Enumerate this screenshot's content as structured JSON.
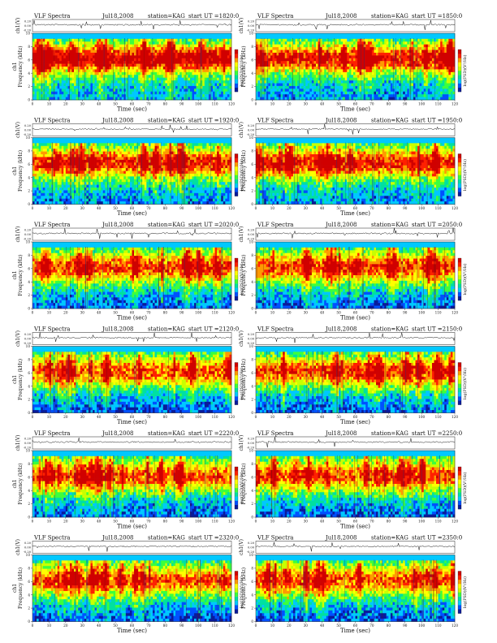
{
  "chart_data": [
    {
      "type": "heatmap",
      "header": {
        "product": "VLF Spectra",
        "date": "Jul18,2008",
        "station": "station=KAG",
        "start": "start  UT =1820:0"
      },
      "waveform_ylabel": "ch1(V)",
      "waveform_ticks": [
        "0.20",
        "0.00",
        "-0.20"
      ],
      "ylabel": "Frequency  (kHz)",
      "ylabel_prefix": "ch1",
      "y_ticks": [
        0,
        2,
        4,
        6,
        8,
        10
      ],
      "ylim": [
        0,
        10
      ],
      "xlabel": "Time  (sec)",
      "x_ticks": [
        0,
        10,
        20,
        30,
        40,
        50,
        60,
        70,
        80,
        90,
        100,
        110,
        120
      ],
      "xlim": [
        0,
        120
      ],
      "colorbar_label": "log(PSD)(V²/Hz)",
      "intensity": 0.92
    },
    {
      "type": "heatmap",
      "header": {
        "product": "VLF Spectra",
        "date": "Jul18,2008",
        "station": "station=KAG",
        "start": "start  UT =1850:0"
      },
      "waveform_ylabel": "ch1(V)",
      "waveform_ticks": [
        "0.20",
        "0.00",
        "-0.20"
      ],
      "ylabel": "Frequency  (kHz)",
      "ylabel_prefix": "",
      "y_ticks": [
        0,
        2,
        4,
        6,
        8,
        10
      ],
      "ylim": [
        0,
        10
      ],
      "xlabel": "Time  (sec)",
      "x_ticks": [
        0,
        10,
        20,
        30,
        40,
        50,
        60,
        70,
        80,
        90,
        100,
        110,
        120
      ],
      "xlim": [
        0,
        120
      ],
      "colorbar_label": "log(PSD)(V²/Hz)",
      "intensity": 0.75
    },
    {
      "type": "heatmap",
      "header": {
        "product": "VLF Spectra",
        "date": "Jul18,2008",
        "station": "station=KAG",
        "start": "start  UT =1920:0"
      },
      "waveform_ylabel": "ch1(V)",
      "waveform_ticks": [
        "0.20",
        "0.00",
        "-0.20"
      ],
      "ylabel": "Frequency  (kHz)",
      "ylabel_prefix": "ch1",
      "y_ticks": [
        0,
        2,
        4,
        6,
        8,
        10
      ],
      "ylim": [
        0,
        10
      ],
      "xlabel": "Time  (sec)",
      "x_ticks": [
        0,
        10,
        20,
        30,
        40,
        50,
        60,
        70,
        80,
        90,
        100,
        110,
        120
      ],
      "xlim": [
        0,
        120
      ],
      "colorbar_label": "log(PSD)(V²/Hz)",
      "intensity": 0.7
    },
    {
      "type": "heatmap",
      "header": {
        "product": "VLF Spectra",
        "date": "Jul18,2008",
        "station": "station=KAG",
        "start": "start  UT =1950:0"
      },
      "waveform_ylabel": "ch1(V)",
      "waveform_ticks": [
        "0.20",
        "0.00",
        "-0.20"
      ],
      "ylabel": "Frequency  (kHz)",
      "ylabel_prefix": "",
      "y_ticks": [
        0,
        2,
        4,
        6,
        8,
        10
      ],
      "ylim": [
        0,
        10
      ],
      "xlabel": "Time  (sec)",
      "x_ticks": [
        0,
        10,
        20,
        30,
        40,
        50,
        60,
        70,
        80,
        90,
        100,
        110,
        120
      ],
      "xlim": [
        0,
        120
      ],
      "colorbar_label": "log(PSD)(V²/Hz)",
      "intensity": 0.72
    },
    {
      "type": "heatmap",
      "header": {
        "product": "VLF Spectra",
        "date": "Jul18,2008",
        "station": "station=KAG",
        "start": "start  UT =2020:0"
      },
      "waveform_ylabel": "ch1(V)",
      "waveform_ticks": [
        "0.20",
        "0.00",
        "-0.20"
      ],
      "ylabel": "Frequency  (kHz)",
      "ylabel_prefix": "ch1",
      "y_ticks": [
        0,
        2,
        4,
        6,
        8,
        10
      ],
      "ylim": [
        0,
        10
      ],
      "xlabel": "Time  (sec)",
      "x_ticks": [
        0,
        10,
        20,
        30,
        40,
        50,
        60,
        70,
        80,
        90,
        100,
        110,
        120
      ],
      "xlim": [
        0,
        120
      ],
      "colorbar_label": "log(PSD)(V²/Hz)",
      "intensity": 0.55
    },
    {
      "type": "heatmap",
      "header": {
        "product": "VLF Spectra",
        "date": "Jul18,2008",
        "station": "station=KAG",
        "start": "start  UT =2050:0"
      },
      "waveform_ylabel": "ch1(V)",
      "waveform_ticks": [
        "0.20",
        "0.00",
        "-0.20"
      ],
      "ylabel": "Frequency  (kHz)",
      "ylabel_prefix": "",
      "y_ticks": [
        0,
        2,
        4,
        6,
        8,
        10
      ],
      "ylim": [
        0,
        10
      ],
      "xlabel": "Time  (sec)",
      "x_ticks": [
        0,
        10,
        20,
        30,
        40,
        50,
        60,
        70,
        80,
        90,
        100,
        110,
        120
      ],
      "xlim": [
        0,
        120
      ],
      "colorbar_label": "log(PSD)(V²/Hz)",
      "intensity": 0.55
    },
    {
      "type": "heatmap",
      "header": {
        "product": "VLF Spectra",
        "date": "Jul18,2008",
        "station": "station=KAG",
        "start": "start  UT =2120:0"
      },
      "waveform_ylabel": "ch1(V)",
      "waveform_ticks": [
        "0.20",
        "0.00",
        "-0.20"
      ],
      "ylabel": "Frequency  (kHz)",
      "ylabel_prefix": "ch1",
      "y_ticks": [
        0,
        2,
        4,
        6,
        8,
        10
      ],
      "ylim": [
        0,
        10
      ],
      "xlabel": "Time  (sec)",
      "x_ticks": [
        0,
        10,
        20,
        30,
        40,
        50,
        60,
        70,
        80,
        90,
        100,
        110,
        120
      ],
      "xlim": [
        0,
        120
      ],
      "colorbar_label": "log(PSD)(V²/Hz)",
      "intensity": 0.5
    },
    {
      "type": "heatmap",
      "header": {
        "product": "VLF Spectra",
        "date": "Jul18,2008",
        "station": "station=KAG",
        "start": "start  UT =2150:0"
      },
      "waveform_ylabel": "ch1(V)",
      "waveform_ticks": [
        "0.20",
        "0.00",
        "-0.20"
      ],
      "ylabel": "Frequency  (kHz)",
      "ylabel_prefix": "",
      "y_ticks": [
        0,
        2,
        4,
        6,
        8,
        10
      ],
      "ylim": [
        0,
        10
      ],
      "xlabel": "Time  (sec)",
      "x_ticks": [
        0,
        10,
        20,
        30,
        40,
        50,
        60,
        70,
        80,
        90,
        100,
        110,
        120
      ],
      "xlim": [
        0,
        120
      ],
      "colorbar_label": "log(PSD)(V²/Hz)",
      "intensity": 0.55
    },
    {
      "type": "heatmap",
      "header": {
        "product": "VLF Spectra",
        "date": "Jul18,2008",
        "station": "station=KAG",
        "start": "start  UT =2220:0"
      },
      "waveform_ylabel": "ch1(V)",
      "waveform_ticks": [
        "0.20",
        "0.00",
        "-0.20"
      ],
      "ylabel": "Frequency  (kHz)",
      "ylabel_prefix": "ch1",
      "y_ticks": [
        0,
        2,
        4,
        6,
        8,
        10
      ],
      "ylim": [
        0,
        10
      ],
      "xlabel": "Time  (sec)",
      "x_ticks": [
        0,
        10,
        20,
        30,
        40,
        50,
        60,
        70,
        80,
        90,
        100,
        110,
        120
      ],
      "xlim": [
        0,
        120
      ],
      "colorbar_label": "log(PSD)(V²/Hz)",
      "intensity": 0.52
    },
    {
      "type": "heatmap",
      "header": {
        "product": "VLF Spectra",
        "date": "Jul18,2008",
        "station": "station=KAG",
        "start": "start  UT =2250:0"
      },
      "waveform_ylabel": "ch1(V)",
      "waveform_ticks": [
        "0.20",
        "0.00",
        "-0.20"
      ],
      "ylabel": "Frequency  (kHz)",
      "ylabel_prefix": "",
      "y_ticks": [
        0,
        2,
        4,
        6,
        8,
        10
      ],
      "ylim": [
        0,
        10
      ],
      "xlabel": "Time  (sec)",
      "x_ticks": [
        0,
        10,
        20,
        30,
        40,
        50,
        60,
        70,
        80,
        90,
        100,
        110,
        120
      ],
      "xlim": [
        0,
        120
      ],
      "colorbar_label": "log(PSD)(V²/Hz)",
      "intensity": 0.5
    },
    {
      "type": "heatmap",
      "header": {
        "product": "VLF Spectra",
        "date": "Jul18,2008",
        "station": "station=KAG",
        "start": "start  UT =2320:0"
      },
      "waveform_ylabel": "ch1(V)",
      "waveform_ticks": [
        "0.20",
        "0.00",
        "-0.20"
      ],
      "ylabel": "Frequency  (kHz)",
      "ylabel_prefix": "ch1",
      "y_ticks": [
        0,
        2,
        4,
        6,
        8,
        10
      ],
      "ylim": [
        0,
        10
      ],
      "xlabel": "Time  (sec)",
      "x_ticks": [
        0,
        10,
        20,
        30,
        40,
        50,
        60,
        70,
        80,
        90,
        100,
        110,
        120
      ],
      "xlim": [
        0,
        120
      ],
      "colorbar_label": "log(PSD)(V²/Hz)",
      "intensity": 0.5
    },
    {
      "type": "heatmap",
      "header": {
        "product": "VLF Spectra",
        "date": "Jul18,2008",
        "station": "station=KAG",
        "start": "start  UT =2350:0"
      },
      "waveform_ylabel": "ch1(V)",
      "waveform_ticks": [
        "0.20",
        "0.00",
        "-0.20"
      ],
      "ylabel": "Frequency  (kHz)",
      "ylabel_prefix": "",
      "y_ticks": [
        0,
        2,
        4,
        6,
        8,
        10
      ],
      "ylim": [
        0,
        10
      ],
      "xlabel": "Time  (sec)",
      "x_ticks": [
        0,
        10,
        20,
        30,
        40,
        50,
        60,
        70,
        80,
        90,
        100,
        110,
        120
      ],
      "xlim": [
        0,
        120
      ],
      "colorbar_label": "log(PSD)(V²/Hz)",
      "intensity": 0.5
    }
  ],
  "colors": {
    "colormap": [
      "#0a1a9a",
      "#0050ff",
      "#00c8ff",
      "#00e0a0",
      "#3cff3c",
      "#c8ff00",
      "#ffff00",
      "#ff9a00",
      "#ff2000",
      "#d00000"
    ],
    "background_band": "#00d8f0",
    "trace": "#111111"
  }
}
